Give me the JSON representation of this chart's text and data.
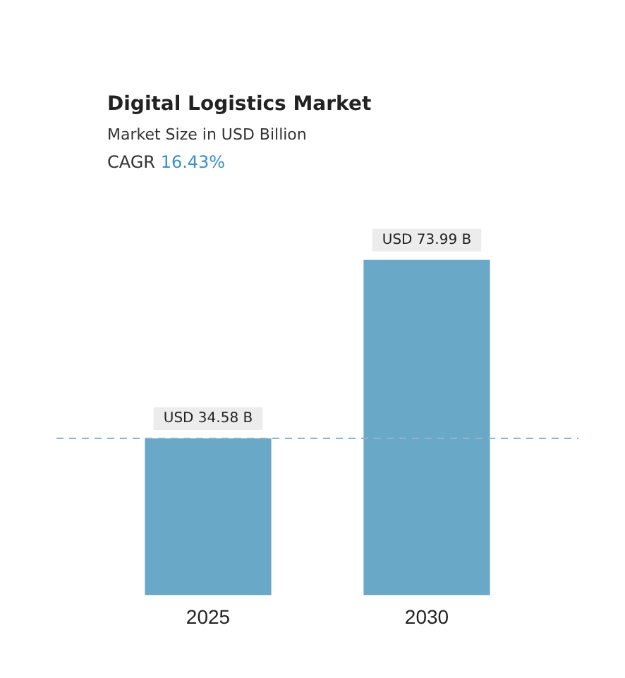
{
  "chart_data": {
    "type": "bar",
    "title": "Digital Logistics Market",
    "subtitle": "Market Size in USD Billion",
    "annotations": [
      "CAGR 16.43%"
    ],
    "categories": [
      "2025",
      "2030"
    ],
    "values": [
      34.58,
      73.99
    ],
    "value_labels": [
      "USD 34.58 B",
      "USD 73.99 B"
    ],
    "color": "#6aa8c8",
    "ref_lines": [
      {
        "axis": "y",
        "value": 34.58,
        "color": "#8fb3c9",
        "line_style": "dashed"
      }
    ],
    "grid": false,
    "legend": false
  }
}
